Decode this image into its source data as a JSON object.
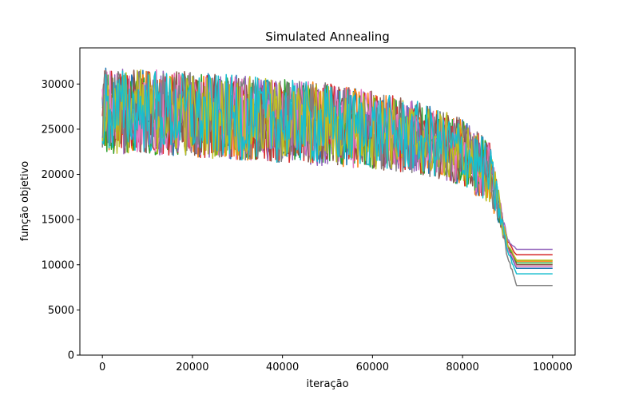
{
  "chart_data": {
    "type": "line",
    "title": "Simulated Annealing",
    "xlabel": "iteração",
    "ylabel": "função objetivo",
    "xlim": [
      -5000,
      105000
    ],
    "ylim": [
      0,
      34000
    ],
    "x_ticks": [
      0,
      20000,
      40000,
      60000,
      80000,
      100000
    ],
    "y_ticks": [
      0,
      5000,
      10000,
      15000,
      20000,
      25000,
      30000
    ],
    "grid": false,
    "legend": "none",
    "series": [
      {
        "color": "#1f77b4",
        "final": 9600,
        "x": [
          0,
          10000,
          20000,
          30000,
          40000,
          50000,
          60000,
          70000,
          80000,
          86000,
          88000,
          90000,
          92000,
          100000
        ],
        "y": [
          27000,
          27000,
          26600,
          26300,
          25900,
          25500,
          24900,
          24100,
          22500,
          20000,
          16500,
          12000,
          9600,
          9600
        ]
      },
      {
        "color": "#ff7f0e",
        "final": 10400,
        "x": [
          0,
          10000,
          20000,
          30000,
          40000,
          50000,
          60000,
          70000,
          80000,
          86000,
          88000,
          90000,
          92000,
          100000
        ],
        "y": [
          27000,
          27000,
          26600,
          26300,
          25900,
          25500,
          24900,
          24100,
          22500,
          20000,
          16500,
          12200,
          10400,
          10400
        ]
      },
      {
        "color": "#2ca02c",
        "final": 10200,
        "x": [
          0,
          10000,
          20000,
          30000,
          40000,
          50000,
          60000,
          70000,
          80000,
          86000,
          88000,
          90000,
          92000,
          100000
        ],
        "y": [
          27000,
          27000,
          26600,
          26300,
          25900,
          25500,
          24900,
          24100,
          22500,
          20000,
          16500,
          12100,
          10200,
          10200
        ]
      },
      {
        "color": "#d62728",
        "final": 11100,
        "x": [
          0,
          10000,
          20000,
          30000,
          40000,
          50000,
          60000,
          70000,
          80000,
          86000,
          88000,
          90000,
          92000,
          100000
        ],
        "y": [
          27000,
          27000,
          26600,
          26300,
          25900,
          25500,
          24900,
          24100,
          22500,
          20000,
          16500,
          12500,
          11100,
          11100
        ]
      },
      {
        "color": "#9467bd",
        "final": 11700,
        "x": [
          0,
          10000,
          20000,
          30000,
          40000,
          50000,
          60000,
          70000,
          80000,
          86000,
          88000,
          90000,
          92000,
          100000
        ],
        "y": [
          27000,
          27000,
          26600,
          26300,
          25900,
          25500,
          24900,
          24100,
          22500,
          20000,
          16500,
          12800,
          11700,
          11700
        ]
      },
      {
        "color": "#8c564b",
        "final": 10000,
        "x": [
          0,
          10000,
          20000,
          30000,
          40000,
          50000,
          60000,
          70000,
          80000,
          86000,
          88000,
          90000,
          92000,
          100000
        ],
        "y": [
          27000,
          27000,
          26600,
          26300,
          25900,
          25500,
          24900,
          24100,
          22500,
          20000,
          16500,
          12000,
          10000,
          10000
        ]
      },
      {
        "color": "#e377c2",
        "final": 9800,
        "x": [
          0,
          10000,
          20000,
          30000,
          40000,
          50000,
          60000,
          70000,
          80000,
          86000,
          88000,
          90000,
          92000,
          100000
        ],
        "y": [
          27000,
          27000,
          26600,
          26300,
          25900,
          25500,
          24900,
          24100,
          22500,
          20000,
          16500,
          11900,
          9800,
          9800
        ]
      },
      {
        "color": "#7f7f7f",
        "final": 7700,
        "x": [
          0,
          10000,
          20000,
          30000,
          40000,
          50000,
          60000,
          70000,
          80000,
          86000,
          88000,
          90000,
          92000,
          100000
        ],
        "y": [
          27000,
          27000,
          26600,
          26300,
          25900,
          25500,
          24900,
          24100,
          22500,
          20000,
          16500,
          11000,
          7700,
          7700
        ]
      },
      {
        "color": "#bcbd22",
        "final": 10500,
        "x": [
          0,
          10000,
          20000,
          30000,
          40000,
          50000,
          60000,
          70000,
          80000,
          86000,
          88000,
          90000,
          92000,
          100000
        ],
        "y": [
          27000,
          27000,
          26600,
          26300,
          25900,
          25500,
          24900,
          24100,
          22500,
          20000,
          16500,
          12300,
          10500,
          10500
        ]
      },
      {
        "color": "#17becf",
        "final": 9000,
        "x": [
          0,
          10000,
          20000,
          30000,
          40000,
          50000,
          60000,
          70000,
          80000,
          86000,
          88000,
          90000,
          92000,
          100000
        ],
        "y": [
          27000,
          27000,
          26600,
          26300,
          25900,
          25500,
          24900,
          24100,
          22500,
          20000,
          16500,
          11500,
          9000,
          9000
        ]
      }
    ]
  }
}
